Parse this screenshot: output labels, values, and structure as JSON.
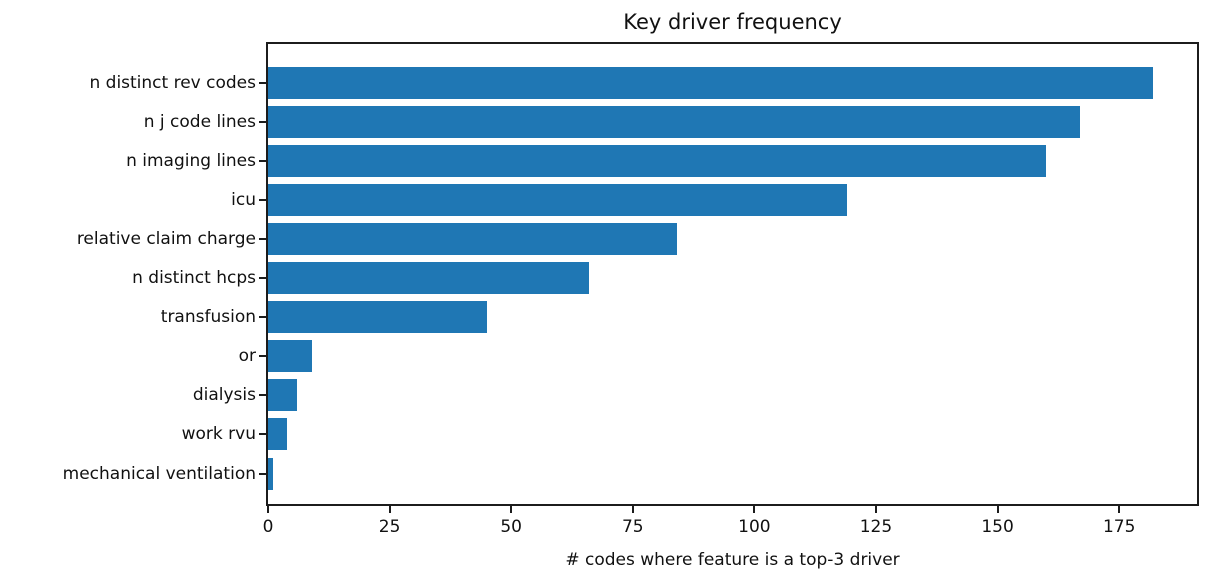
{
  "chart_data": {
    "type": "bar",
    "orientation": "horizontal",
    "title": "Key driver frequency",
    "xlabel": "# codes where feature is a top-3 driver",
    "ylabel": "",
    "categories": [
      "n distinct rev codes",
      "n j code lines",
      "n imaging lines",
      "icu",
      "relative claim charge",
      "n distinct hcps",
      "transfusion",
      "or",
      "dialysis",
      "work rvu",
      "mechanical ventilation"
    ],
    "values": [
      182,
      167,
      160,
      119,
      84,
      66,
      45,
      9,
      6,
      4,
      1
    ],
    "xticks": [
      0,
      25,
      50,
      75,
      100,
      125,
      150,
      175
    ],
    "xlim": [
      0,
      191
    ],
    "bar_color": "#1f77b4",
    "axis_color": "#1c1c1c",
    "grid": false,
    "legend": null
  }
}
